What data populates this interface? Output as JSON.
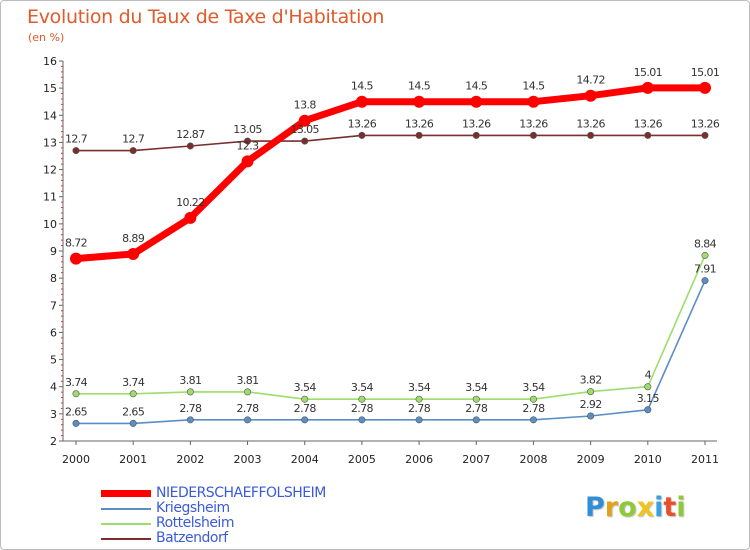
{
  "chart_data": {
    "type": "line",
    "title": "Evolution du Taux de Taxe d'Habitation",
    "subtitle": "(en %)",
    "xlabel": "",
    "ylabel": "",
    "ylim": [
      2,
      16
    ],
    "yticks": [
      2,
      3,
      4,
      5,
      6,
      7,
      8,
      9,
      10,
      11,
      12,
      13,
      14,
      15,
      16
    ],
    "categories": [
      "2000",
      "2001",
      "2002",
      "2003",
      "2004",
      "2005",
      "2006",
      "2007",
      "2008",
      "2009",
      "2010",
      "2011"
    ],
    "legend_position": "bottom-left",
    "grid": false,
    "series": [
      {
        "name": "NIEDERSCHAEFFOLSHEIM",
        "color": "#ff0000",
        "values": [
          8.72,
          8.89,
          10.22,
          12.3,
          13.8,
          14.5,
          14.5,
          14.5,
          14.5,
          14.72,
          15.01,
          15.01
        ],
        "labels": [
          "8.72",
          "8.89",
          "10.22",
          "12.3",
          "13.8",
          "14.5",
          "14.5",
          "14.5",
          "14.5",
          "14.72",
          "15.01",
          "15.01"
        ]
      },
      {
        "name": "Kriegsheim",
        "color": "#5b8ec4",
        "values": [
          2.65,
          2.65,
          2.78,
          2.78,
          2.78,
          2.78,
          2.78,
          2.78,
          2.78,
          2.92,
          3.15,
          7.91
        ],
        "labels": [
          "2.65",
          "2.65",
          "2.78",
          "2.78",
          "2.78",
          "2.78",
          "2.78",
          "2.78",
          "2.78",
          "2.92",
          "3.15",
          "7.91"
        ]
      },
      {
        "name": "Rottelsheim",
        "color": "#9ddd6b",
        "values": [
          3.74,
          3.74,
          3.81,
          3.81,
          3.54,
          3.54,
          3.54,
          3.54,
          3.54,
          3.82,
          4,
          8.84
        ],
        "labels": [
          "3.74",
          "3.74",
          "3.81",
          "3.81",
          "3.54",
          "3.54",
          "3.54",
          "3.54",
          "3.54",
          "3.82",
          "4",
          "8.84"
        ]
      },
      {
        "name": "Batzendorf",
        "color": "#7a2e2e",
        "values": [
          12.7,
          12.7,
          12.87,
          13.05,
          13.05,
          13.26,
          13.26,
          13.26,
          13.26,
          13.26,
          13.26,
          13.26
        ],
        "labels": [
          "12.7",
          "12.7",
          "12.87",
          "13.05",
          "13.05",
          "13.26",
          "13.26",
          "13.26",
          "13.26",
          "13.26",
          "13.26",
          "13.26"
        ]
      }
    ]
  },
  "logo": {
    "letters": [
      {
        "ch": "P",
        "color": "#2f8fd6"
      },
      {
        "ch": "r",
        "color": "#e2a21a"
      },
      {
        "ch": "o",
        "color": "#8fc93a"
      },
      {
        "ch": "x",
        "color": "#f0c419"
      },
      {
        "ch": "i",
        "color": "#3aa0e0"
      },
      {
        "ch": "t",
        "color": "#e8502a"
      },
      {
        "ch": "i",
        "color": "#8fc93a"
      }
    ]
  }
}
